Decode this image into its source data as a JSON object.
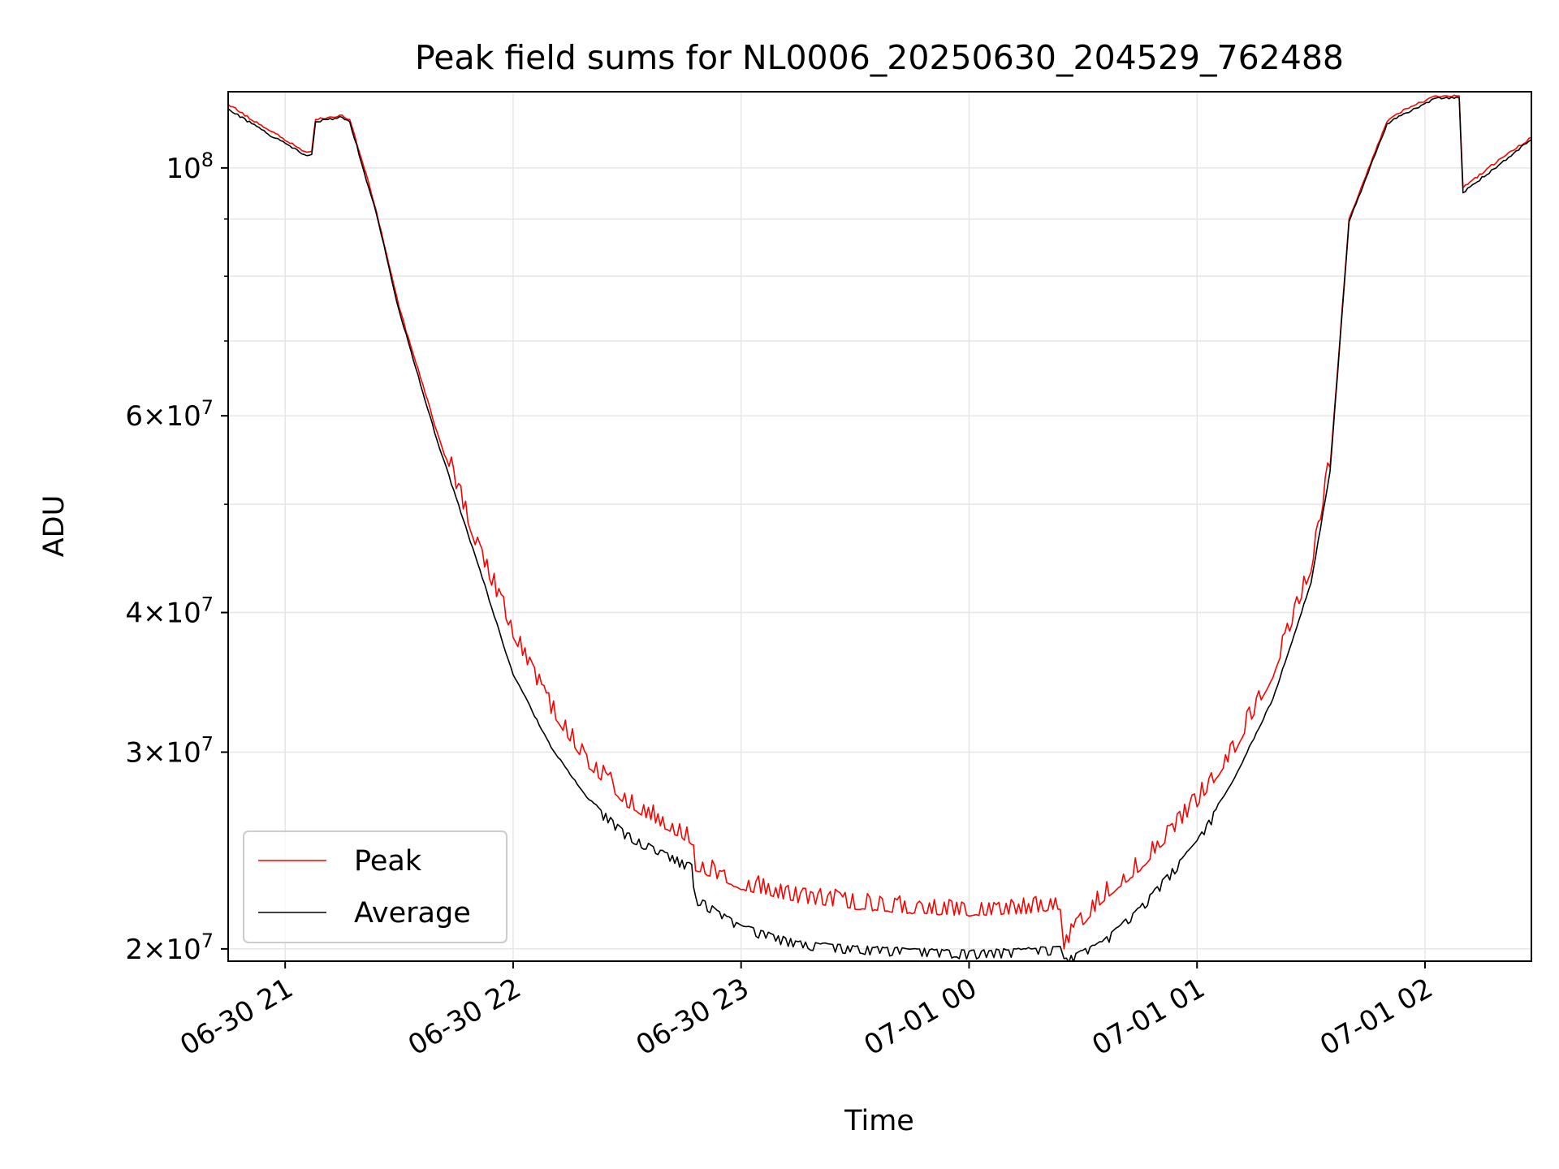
{
  "chart_data": {
    "type": "line",
    "title": "Peak field sums for NL0006_20250630_204529_762488",
    "xlabel": "Time",
    "ylabel": "ADU",
    "yscale": "log",
    "grid": true,
    "legend_position": "lower-left",
    "xlim": [
      "2025-06-30 20:45",
      "2025-07-01 02:28"
    ],
    "ylim": [
      19500000,
      117000000
    ],
    "x_ticks": [
      {
        "value": "2025-06-30 21:00",
        "label": "06-30 21"
      },
      {
        "value": "2025-06-30 22:00",
        "label": "06-30 22"
      },
      {
        "value": "2025-06-30 23:00",
        "label": "06-30 23"
      },
      {
        "value": "2025-07-01 00:00",
        "label": "07-01 00"
      },
      {
        "value": "2025-07-01 01:00",
        "label": "07-01 01"
      },
      {
        "value": "2025-07-01 02:00",
        "label": "07-01 02"
      }
    ],
    "y_ticks": [
      {
        "value": 20000000,
        "base": "2",
        "exp": "7"
      },
      {
        "value": 30000000,
        "base": "3",
        "exp": "7"
      },
      {
        "value": 40000000,
        "base": "4",
        "exp": "7"
      },
      {
        "value": 60000000,
        "base": "6",
        "exp": "7"
      },
      {
        "value": 100000000,
        "base": "",
        "exp": "8"
      }
    ],
    "y_minor_ticks": [
      50000000,
      70000000,
      80000000,
      90000000
    ],
    "series": [
      {
        "name": "Peak",
        "color": "#ff0000",
        "x": [
          "2025-06-30 20:45",
          "2025-06-30 20:55",
          "2025-06-30 21:05",
          "2025-06-30 21:07",
          "2025-06-30 21:08",
          "2025-06-30 21:15",
          "2025-06-30 21:17",
          "2025-06-30 21:22",
          "2025-06-30 21:24",
          "2025-06-30 21:30",
          "2025-06-30 21:40",
          "2025-06-30 21:50",
          "2025-06-30 22:00",
          "2025-06-30 22:10",
          "2025-06-30 22:20",
          "2025-06-30 22:30",
          "2025-06-30 22:40",
          "2025-06-30 22:47",
          "2025-06-30 22:48",
          "2025-06-30 23:00",
          "2025-06-30 23:15",
          "2025-06-30 23:30",
          "2025-06-30 23:45",
          "2025-07-01 00:00",
          "2025-07-01 00:15",
          "2025-07-01 00:24",
          "2025-07-01 00:25",
          "2025-07-01 00:35",
          "2025-07-01 00:45",
          "2025-07-01 01:00",
          "2025-07-01 01:10",
          "2025-07-01 01:20",
          "2025-07-01 01:30",
          "2025-07-01 01:35",
          "2025-07-01 01:37",
          "2025-07-01 01:40",
          "2025-07-01 01:50",
          "2025-07-01 01:55",
          "2025-07-01 02:03",
          "2025-07-01 02:09",
          "2025-07-01 02:10",
          "2025-07-01 02:20",
          "2025-07-01 02:28"
        ],
        "y": [
          114000000,
          108500000,
          103500000,
          103500000,
          110500000,
          111500000,
          110500000,
          97000000,
          91500000,
          75000000,
          58000000,
          46000000,
          38000000,
          32500000,
          29000000,
          26800000,
          25600000,
          24800000,
          23500000,
          22600000,
          22000000,
          21700000,
          21500000,
          21400000,
          21500000,
          21700000,
          20000000,
          22000000,
          23500000,
          26800000,
          30000000,
          35000000,
          43500000,
          54000000,
          66000000,
          90000000,
          110000000,
          113000000,
          116000000,
          116000000,
          96000000,
          102000000,
          106500000
        ]
      },
      {
        "name": "Average",
        "color": "#000000",
        "x": [
          "2025-06-30 20:45",
          "2025-06-30 20:55",
          "2025-06-30 21:05",
          "2025-06-30 21:07",
          "2025-06-30 21:08",
          "2025-06-30 21:15",
          "2025-06-30 21:17",
          "2025-06-30 21:22",
          "2025-06-30 21:24",
          "2025-06-30 21:30",
          "2025-06-30 21:40",
          "2025-06-30 21:50",
          "2025-06-30 22:00",
          "2025-06-30 22:10",
          "2025-06-30 22:20",
          "2025-06-30 22:30",
          "2025-06-30 22:40",
          "2025-06-30 22:47",
          "2025-06-30 22:48",
          "2025-06-30 23:00",
          "2025-06-30 23:15",
          "2025-06-30 23:30",
          "2025-06-30 23:45",
          "2025-07-01 00:00",
          "2025-07-01 00:15",
          "2025-07-01 00:24",
          "2025-07-01 00:25",
          "2025-07-01 00:35",
          "2025-07-01 00:45",
          "2025-07-01 01:00",
          "2025-07-01 01:10",
          "2025-07-01 01:20",
          "2025-07-01 01:30",
          "2025-07-01 01:35",
          "2025-07-01 01:37",
          "2025-07-01 01:40",
          "2025-07-01 01:50",
          "2025-07-01 01:55",
          "2025-07-01 02:03",
          "2025-07-01 02:09",
          "2025-07-01 02:10",
          "2025-07-01 02:20",
          "2025-07-01 02:28"
        ],
        "y": [
          113000000,
          107500000,
          102800000,
          102800000,
          110000000,
          111000000,
          110000000,
          96000000,
          91000000,
          74500000,
          57000000,
          45000000,
          35200000,
          30300000,
          27200000,
          25400000,
          24400000,
          23800000,
          22300000,
          21000000,
          20300000,
          20100000,
          20000000,
          19900000,
          20000000,
          20100000,
          19600000,
          20300000,
          21800000,
          25000000,
          28500000,
          33500000,
          42500000,
          53500000,
          65500000,
          89500000,
          109500000,
          112000000,
          115500000,
          115500000,
          95000000,
          101000000,
          106000000
        ]
      }
    ]
  }
}
